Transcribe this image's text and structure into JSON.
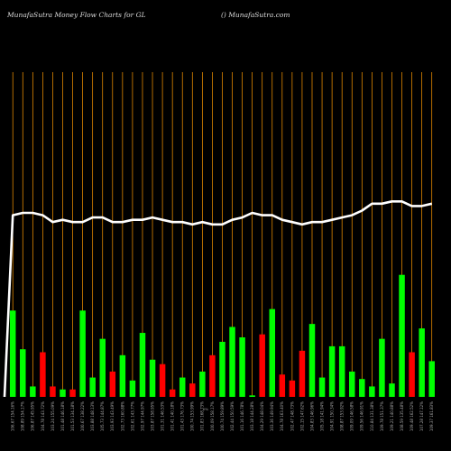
{
  "header": {
    "left": "MunafaSutra  Money Flow  Charts for GL",
    "right": "() MunafaSutra.com"
  },
  "colors": {
    "up": "#00ff00",
    "down": "#ff0000",
    "grid": "#ff9900",
    "line": "#ffffff",
    "background": "#000000"
  },
  "chart_data": {
    "type": "bar",
    "ylim": [
      0,
      100
    ],
    "grid": "vertical",
    "x_axis_center_label": "0%",
    "categories": [
      "106.67 154.16%",
      "108.89 154.17%",
      "106.87 145.95%",
      "104.78 143.72%",
      "103.24 155.09%",
      "101.48 146.18%",
      "101.53 134.18%",
      "100.67 138.22%",
      "103.88 148.13%",
      "105.73 144.87%",
      "103.93 143.49%",
      "102.73 160.88%",
      "102.61 143.77%",
      "102.97 144.97%",
      "103.87 158.95%",
      "101.31 146.53%",
      "101.41 140.18%",
      "101.43 176.73%",
      "100.74 153.99%",
      "101.83 168.73%",
      "100.09 158.17%",
      "100.74 159.89%",
      "102.44 150.59%",
      "101.16 146.78%",
      "103.18 144.28%",
      "104.29 148.04%",
      "103.36 149.94%",
      "104.78 163.40%",
      "102.47 148.73%",
      "102.15 147.62%",
      "104.83 146.96%",
      "105.18 141.94%",
      "104.91 150.34%",
      "108.87 153.92%",
      "109.09 146.58%",
      "109.56 146.91%",
      "110.84 131.38%",
      "109.78 151.37%",
      "109.21 140.88%",
      "108.59 135.48%",
      "109.48 162.52%",
      "107.28 147.12%",
      "109.37 161.83%"
    ],
    "series": [
      {
        "values": [
          58,
          32,
          7,
          30,
          7,
          5,
          5,
          58,
          13,
          39,
          17,
          28,
          11,
          43,
          25,
          22,
          5,
          13,
          9,
          17,
          28,
          37,
          47,
          40,
          1,
          42,
          59,
          15,
          11,
          31,
          49,
          13,
          34,
          34,
          17,
          12,
          7,
          39,
          9,
          82,
          30,
          46,
          24
        ]
      },
      {
        "values": [
          79,
          80,
          80,
          79,
          76,
          77,
          76,
          76,
          78,
          78,
          76,
          76,
          77,
          77,
          78,
          77,
          76,
          76,
          75,
          76,
          75,
          75,
          77,
          78,
          80,
          79,
          79,
          77,
          76,
          75,
          76,
          76,
          77,
          78,
          79,
          81,
          84,
          84,
          85,
          85,
          83,
          83,
          84
        ]
      }
    ]
  }
}
